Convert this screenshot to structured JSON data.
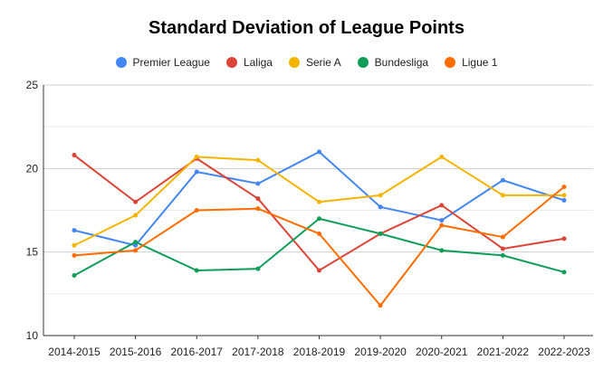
{
  "chart_data": {
    "type": "line",
    "title": "Standard Deviation of League Points",
    "xlabel": "",
    "ylabel": "",
    "x": [
      "2014-2015",
      "2015-2016",
      "2016-2017",
      "2017-2018",
      "2018-2019",
      "2019-2020",
      "2020-2021",
      "2021-2022",
      "2022-2023"
    ],
    "ylim": [
      10,
      25
    ],
    "yticks": [
      10,
      15,
      20,
      25
    ],
    "grid": true,
    "legend_position": "top",
    "series": [
      {
        "name": "Premier League",
        "color": "#4285f4",
        "values": [
          16.3,
          15.4,
          19.8,
          19.1,
          21.0,
          17.7,
          16.9,
          19.3,
          18.1
        ]
      },
      {
        "name": "Laliga",
        "color": "#db4437",
        "values": [
          20.8,
          18.0,
          20.6,
          18.2,
          13.9,
          16.1,
          17.8,
          15.2,
          15.8
        ]
      },
      {
        "name": "Serie A",
        "color": "#f4b400",
        "values": [
          15.4,
          17.2,
          20.7,
          20.5,
          18.0,
          18.4,
          20.7,
          18.4,
          18.4
        ]
      },
      {
        "name": "Bundesliga",
        "color": "#0f9d58",
        "values": [
          13.6,
          15.6,
          13.9,
          14.0,
          17.0,
          16.1,
          15.1,
          14.8,
          13.8
        ]
      },
      {
        "name": "Ligue 1",
        "color": "#ff6d01",
        "values": [
          14.8,
          15.1,
          17.5,
          17.6,
          16.1,
          11.8,
          16.6,
          15.9,
          18.9
        ]
      }
    ]
  }
}
